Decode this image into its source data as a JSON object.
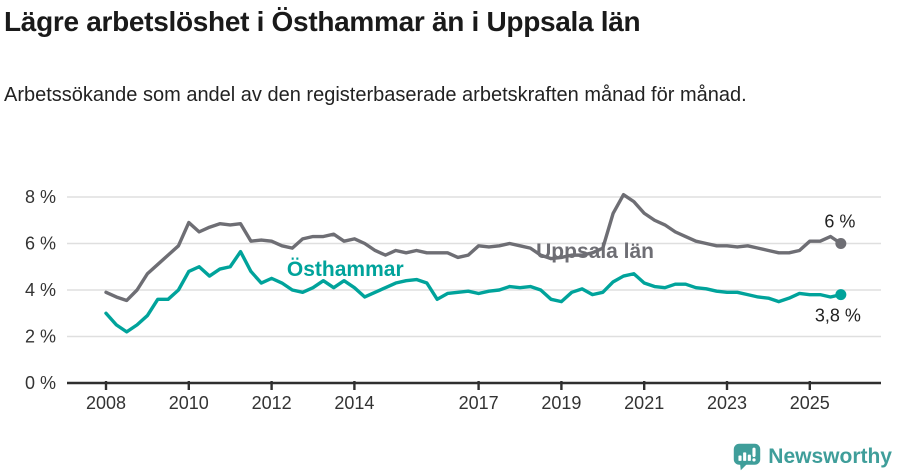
{
  "header": {
    "title": "Lägre arbetslöshet i Östhammar än i Uppsala län",
    "subtitle": "Arbetssökande som andel av den registerbaserade arbetskraften månad för månad."
  },
  "footer": {
    "brand": "Newsworthy",
    "logo_icon": "bar-chart-speech-bubble-icon"
  },
  "colors": {
    "series_gray": "#6e6e74",
    "series_teal": "#00a39b",
    "brand_teal": "#3f9e9a",
    "grid": "#dfdfdf",
    "axis": "#2f2f2f",
    "text": "#1a1a1a"
  },
  "chart_data": {
    "type": "line",
    "unit": "%",
    "x_start": 2008.0,
    "x_step": 0.25,
    "x_ticks": [
      2008,
      2010,
      2012,
      2014,
      2017,
      2019,
      2021,
      2023,
      2025
    ],
    "x_tick_labels": [
      "2008",
      "2010",
      "2012",
      "2014",
      "2017",
      "2019",
      "2021",
      "2023",
      "2025"
    ],
    "y_ticks": [
      0,
      2,
      4,
      6,
      8
    ],
    "y_tick_labels": [
      "0 %",
      "2 %",
      "4 %",
      "6 %",
      "8 %"
    ],
    "ylim": [
      0,
      8.6
    ],
    "xlim": [
      2007.1,
      2026.7
    ],
    "grid": "horizontal",
    "legend_position": "inline-labels",
    "series": [
      {
        "name": "Uppsala län",
        "color": "#6e6e74",
        "end_label": "6 %",
        "end_label_position": "above",
        "label": {
          "text": "Uppsala län",
          "x": 2018.39,
          "y": 5.38
        },
        "values": [
          3.9,
          3.7,
          3.55,
          4.0,
          4.7,
          5.1,
          5.5,
          5.9,
          6.9,
          6.5,
          6.7,
          6.85,
          6.8,
          6.85,
          6.1,
          6.15,
          6.1,
          5.9,
          5.8,
          6.2,
          6.3,
          6.3,
          6.4,
          6.1,
          6.2,
          6.0,
          5.7,
          5.5,
          5.7,
          5.6,
          5.7,
          5.6,
          5.6,
          5.6,
          5.4,
          5.5,
          5.9,
          5.85,
          5.9,
          6.0,
          5.9,
          5.8,
          5.5,
          5.35,
          5.4,
          5.5,
          5.5,
          5.6,
          5.8,
          7.3,
          8.1,
          7.8,
          7.3,
          7.0,
          6.8,
          6.5,
          6.3,
          6.1,
          6.0,
          5.9,
          5.9,
          5.85,
          5.9,
          5.8,
          5.7,
          5.6,
          5.6,
          5.7,
          6.1,
          6.1,
          6.3,
          6.0
        ]
      },
      {
        "name": "Östhammar",
        "color": "#00a39b",
        "end_label": "3,8 %",
        "end_label_position": "below",
        "label": {
          "text": "Östhammar",
          "x": 2012.37,
          "y": 4.6
        },
        "values": [
          3.0,
          2.5,
          2.2,
          2.5,
          2.9,
          3.6,
          3.6,
          4.0,
          4.8,
          5.0,
          4.6,
          4.9,
          5.0,
          5.65,
          4.8,
          4.3,
          4.5,
          4.3,
          4.0,
          3.9,
          4.1,
          4.4,
          4.1,
          4.4,
          4.1,
          3.7,
          3.9,
          4.1,
          4.3,
          4.4,
          4.45,
          4.3,
          3.6,
          3.85,
          3.9,
          3.95,
          3.85,
          3.95,
          4.0,
          4.15,
          4.1,
          4.15,
          4.0,
          3.6,
          3.5,
          3.9,
          4.05,
          3.8,
          3.9,
          4.35,
          4.6,
          4.7,
          4.3,
          4.15,
          4.1,
          4.25,
          4.25,
          4.1,
          4.05,
          3.95,
          3.9,
          3.9,
          3.8,
          3.7,
          3.65,
          3.5,
          3.65,
          3.85,
          3.8,
          3.8,
          3.7,
          3.8
        ]
      }
    ]
  }
}
